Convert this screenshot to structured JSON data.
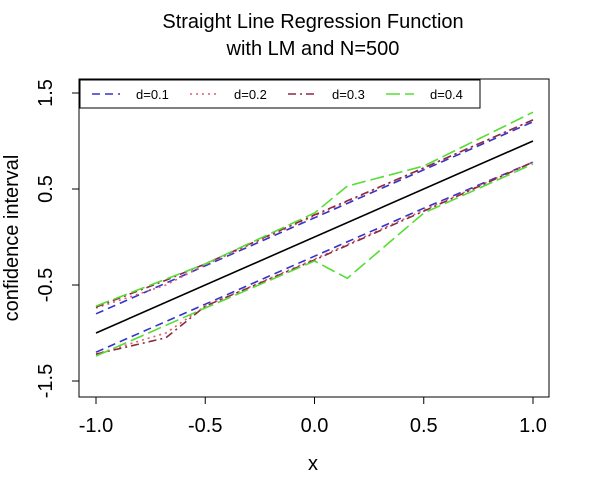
{
  "chart_data": {
    "type": "line",
    "title": [
      "Straight Line Regression Function",
      "with LM and N=500"
    ],
    "xlabel": "x",
    "ylabel": "confidence interval",
    "xlim": [
      -1.0,
      1.0
    ],
    "ylim": [
      -1.7,
      1.65
    ],
    "xticks": [
      -1.0,
      -0.5,
      0.0,
      0.5,
      1.0
    ],
    "xtick_labels": [
      "-1.0",
      "-0.5",
      "0.0",
      "0.5",
      "1.0"
    ],
    "yticks": [
      -1.5,
      -0.5,
      0.5,
      1.5
    ],
    "ytick_labels": [
      "-1.5",
      "-0.5",
      "0.5",
      "1.5"
    ],
    "grid": false,
    "legend_position": "top",
    "regression_line": {
      "x": [
        -1.0,
        1.0
      ],
      "y": [
        -1.0,
        1.0
      ],
      "color": "#000000"
    },
    "series": [
      {
        "name": "d=0.1",
        "color": "#3333cc",
        "dash": "dashed",
        "upper": {
          "x": [
            -1.0,
            -0.5,
            0.0,
            0.5,
            1.0
          ],
          "y": [
            -0.8,
            -0.3,
            0.2,
            0.7,
            1.2
          ]
        },
        "lower": {
          "x": [
            -1.0,
            -0.5,
            0.0,
            0.5,
            1.0
          ],
          "y": [
            -1.2,
            -0.7,
            -0.2,
            0.3,
            0.78
          ]
        }
      },
      {
        "name": "d=0.2",
        "color": "#e05c6e",
        "dash": "dotted",
        "upper": {
          "x": [
            -1.0,
            -0.68,
            -0.5,
            0.0,
            0.5,
            1.0
          ],
          "y": [
            -0.74,
            -0.5,
            -0.29,
            0.22,
            0.72,
            1.22
          ]
        },
        "lower": {
          "x": [
            -1.0,
            -0.68,
            -0.5,
            0.0,
            0.5,
            1.0
          ],
          "y": [
            -1.22,
            -1.0,
            -0.72,
            -0.23,
            0.28,
            0.78
          ]
        }
      },
      {
        "name": "d=0.3",
        "color": "#8a2b40",
        "dash": "dashdot",
        "upper": {
          "x": [
            -1.0,
            -0.68,
            -0.5,
            0.0,
            0.5,
            1.0
          ],
          "y": [
            -0.73,
            -0.45,
            -0.28,
            0.23,
            0.72,
            1.22
          ]
        },
        "lower": {
          "x": [
            -1.0,
            -0.68,
            -0.5,
            0.0,
            0.5,
            1.0
          ],
          "y": [
            -1.22,
            -1.05,
            -0.72,
            -0.24,
            0.27,
            0.78
          ]
        }
      },
      {
        "name": "d=0.4",
        "color": "#55dd33",
        "dash": "longdash",
        "upper": {
          "x": [
            -1.0,
            -0.5,
            0.0,
            0.15,
            0.5,
            1.0
          ],
          "y": [
            -0.72,
            -0.28,
            0.25,
            0.53,
            0.74,
            1.3
          ]
        },
        "lower": {
          "x": [
            -1.0,
            -0.5,
            0.0,
            0.15,
            0.5,
            1.0
          ],
          "y": [
            -1.24,
            -0.74,
            -0.25,
            -0.43,
            0.25,
            0.76
          ]
        }
      }
    ]
  }
}
